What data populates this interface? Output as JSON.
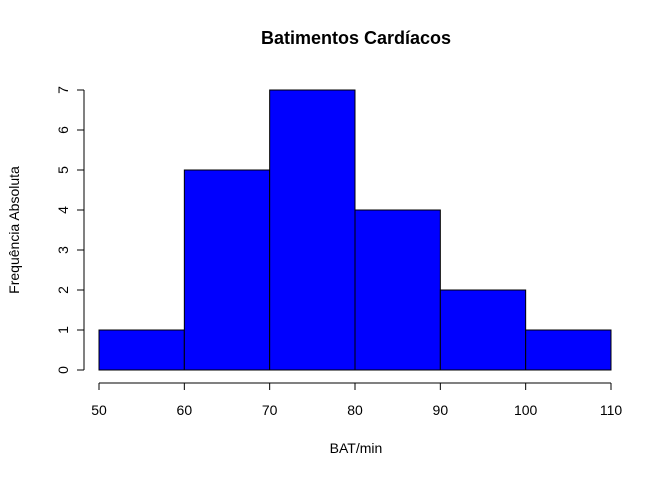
{
  "chart_data": {
    "type": "bar",
    "title": "Batimentos Cardíacos",
    "xlabel": "BAT/min",
    "ylabel": "Frequência Absoluta",
    "bin_edges": [
      50,
      60,
      70,
      80,
      90,
      100,
      110
    ],
    "values": [
      1,
      5,
      7,
      4,
      2,
      1
    ],
    "xticks": [
      "50",
      "60",
      "70",
      "80",
      "90",
      "100",
      "110"
    ],
    "yticks": [
      "0",
      "1",
      "2",
      "3",
      "4",
      "5",
      "6",
      "7"
    ],
    "xlim": [
      50,
      110
    ],
    "ylim": [
      0,
      7
    ],
    "bar_color": "#0000ff",
    "edge_color": "#000000",
    "grid": false,
    "legend": "none"
  }
}
